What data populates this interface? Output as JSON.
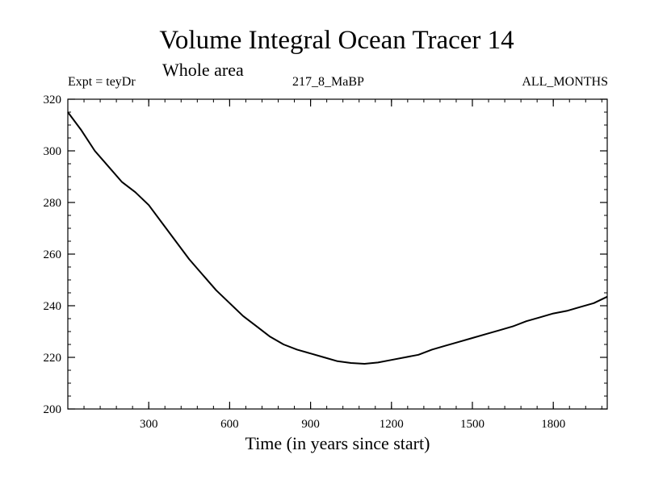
{
  "chart_data": {
    "type": "line",
    "title": "Volume Integral Ocean Tracer 14",
    "subtitle": "Whole area",
    "left_label": "Expt = teyDr",
    "center_label": "217_8_MaBP",
    "right_label": "ALL_MONTHS",
    "xlabel": "Time (in years since start)",
    "ylabel": "",
    "xlim": [
      0,
      2000
    ],
    "ylim": [
      200,
      320
    ],
    "xticks": [
      300,
      600,
      900,
      1200,
      1500,
      1800
    ],
    "yticks": [
      200,
      220,
      240,
      260,
      280,
      300,
      320
    ],
    "grid": false,
    "line_color": "#000000",
    "series": [
      {
        "name": "Ocean Tracer 14",
        "x": [
          0,
          50,
          100,
          150,
          200,
          250,
          300,
          350,
          400,
          450,
          500,
          550,
          600,
          650,
          700,
          750,
          800,
          850,
          900,
          950,
          1000,
          1050,
          1100,
          1150,
          1200,
          1250,
          1300,
          1350,
          1400,
          1450,
          1500,
          1550,
          1600,
          1650,
          1700,
          1750,
          1800,
          1850,
          1900,
          1950,
          2000
        ],
        "values": [
          315,
          308,
          300,
          294,
          288,
          284,
          279,
          272,
          265,
          258,
          252,
          246,
          241,
          236,
          232,
          228,
          225,
          223,
          221.5,
          220,
          218.5,
          217.8,
          217.5,
          218,
          219,
          220,
          221,
          223,
          224.5,
          226,
          227.5,
          229,
          230.5,
          232,
          234,
          235.5,
          237,
          238,
          239.5,
          241,
          243.5
        ]
      }
    ]
  }
}
